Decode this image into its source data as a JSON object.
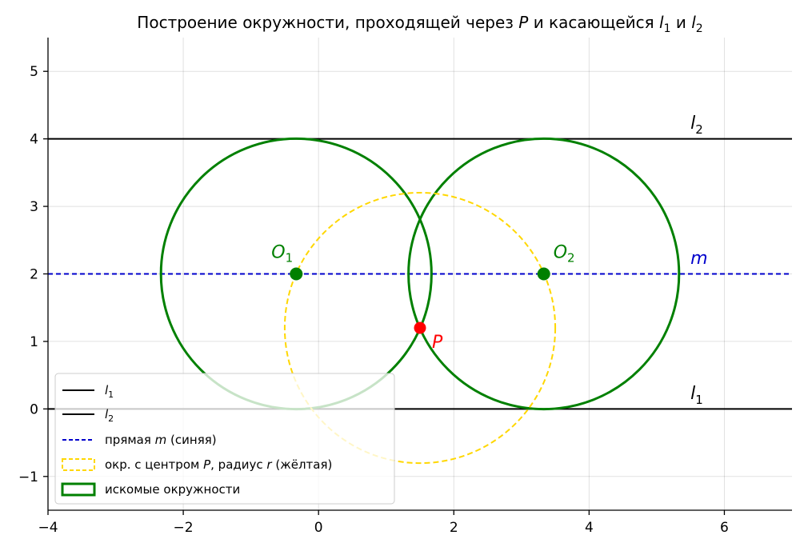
{
  "chart_data": {
    "type": "geometric-construction",
    "title": {
      "main": "Построение окружности, проходящей через",
      "P": "P",
      "mid": "и касающейся",
      "l": "l",
      "sub1": "1",
      "and": "и",
      "sub2": "2"
    },
    "xlim": [
      -4,
      7
    ],
    "ylim": [
      -1.5,
      5.5
    ],
    "x_ticks": [
      -4,
      -2,
      0,
      2,
      4,
      6
    ],
    "y_ticks": [
      -1,
      0,
      1,
      2,
      3,
      4,
      5
    ],
    "x_tick_labels": [
      "−4",
      "−2",
      "0",
      "2",
      "4",
      "6"
    ],
    "y_tick_labels": [
      "−1",
      "0",
      "1",
      "2",
      "3",
      "4",
      "5"
    ],
    "grid": true,
    "lines": [
      {
        "name": "l1",
        "y": 0,
        "color": "#000000",
        "style": "solid"
      },
      {
        "name": "l2",
        "y": 4,
        "color": "#000000",
        "style": "solid"
      },
      {
        "name": "m",
        "y": 2,
        "color": "#0000cc",
        "style": "dashed"
      }
    ],
    "point_P": {
      "x": 1.5,
      "y": 1.2,
      "label": "P",
      "color": "#ff0000"
    },
    "aux_circle": {
      "cx": 1.5,
      "cy": 1.2,
      "r": 2.0,
      "color": "#ffd700",
      "style": "dashed"
    },
    "solution_circles": [
      {
        "cx": -0.33,
        "cy": 2,
        "r": 2,
        "label": "O",
        "sub": "1",
        "color": "#008000"
      },
      {
        "cx": 3.33,
        "cy": 2,
        "r": 2,
        "label": "O",
        "sub": "2",
        "color": "#008000"
      }
    ],
    "line_labels": [
      {
        "text": "l",
        "sub": "2",
        "x": 5.5,
        "y": 4.1,
        "color": "#000000"
      },
      {
        "text": "m",
        "sub": "",
        "x": 5.5,
        "y": 2.1,
        "color": "#0000cc"
      },
      {
        "text": "l",
        "sub": "1",
        "x": 5.5,
        "y": 0.1,
        "color": "#000000"
      }
    ],
    "legend": {
      "position": "lower-left",
      "entries": [
        {
          "kind": "line",
          "color": "#000000",
          "dash": false,
          "label": "l",
          "sub": "1",
          "rest": ""
        },
        {
          "kind": "line",
          "color": "#000000",
          "dash": false,
          "label": "l",
          "sub": "2",
          "rest": ""
        },
        {
          "kind": "line",
          "color": "#0000cc",
          "dash": true,
          "label": "прямая",
          "ital": "m",
          "rest": "(синяя)"
        },
        {
          "kind": "patch",
          "color": "#ffd700",
          "dash": true,
          "label": "окр. с центром",
          "ital": "P",
          "mid": ", радиус",
          "ital2": "r",
          "rest": "(жёлтая)"
        },
        {
          "kind": "patch",
          "color": "#008000",
          "dash": false,
          "label": "искомые окружности"
        }
      ]
    }
  }
}
